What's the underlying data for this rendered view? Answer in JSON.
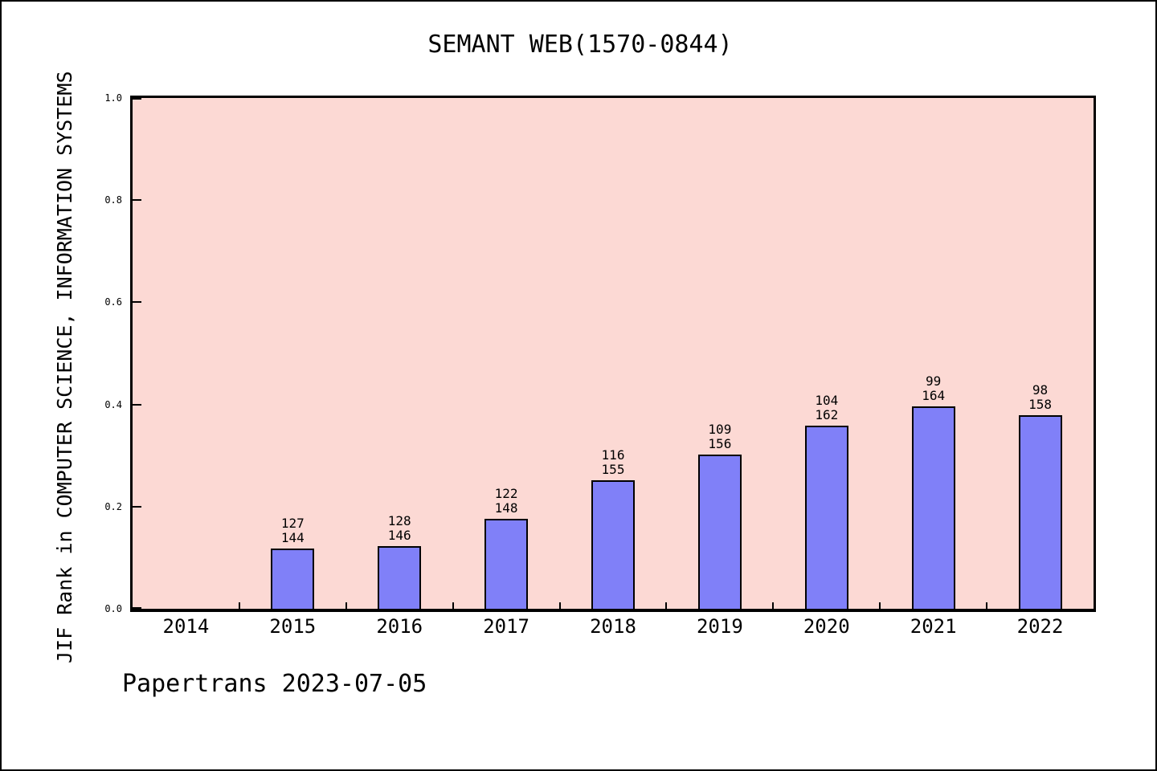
{
  "chart": {
    "title": "SEMANT WEB(1570-0844)",
    "ylabel": "JIF Rank in COMPUTER SCIENCE, INFORMATION SYSTEMS",
    "footer": "Papertrans 2023-07-05"
  },
  "colors": {
    "plot_background": "#fcd9d4",
    "bar_fill": "#8080f8",
    "bar_border": "#000000",
    "axis": "#000000",
    "page_background": "#ffffff",
    "text": "#000000"
  },
  "chart_data": {
    "type": "bar",
    "title": "SEMANT WEB(1570-0844)",
    "xlabel": "",
    "ylabel": "JIF Rank in COMPUTER SCIENCE, INFORMATION SYSTEMS",
    "ylim": [
      0.0,
      1.0
    ],
    "yticks": [
      "0.0",
      "0.2",
      "0.4",
      "0.6",
      "0.8",
      "1.0"
    ],
    "grid": false,
    "legend": false,
    "categories": [
      "2014",
      "2015",
      "2016",
      "2017",
      "2018",
      "2019",
      "2020",
      "2021",
      "2022"
    ],
    "bars": [
      {
        "year": "2014",
        "rank": null,
        "total": null,
        "value": null
      },
      {
        "year": "2015",
        "rank": 127,
        "total": 144,
        "value": 0.1181
      },
      {
        "year": "2016",
        "rank": 128,
        "total": 146,
        "value": 0.1233
      },
      {
        "year": "2017",
        "rank": 122,
        "total": 148,
        "value": 0.1757
      },
      {
        "year": "2018",
        "rank": 116,
        "total": 155,
        "value": 0.2516
      },
      {
        "year": "2019",
        "rank": 109,
        "total": 156,
        "value": 0.3013
      },
      {
        "year": "2020",
        "rank": 104,
        "total": 162,
        "value": 0.358
      },
      {
        "year": "2021",
        "rank": 99,
        "total": 164,
        "value": 0.3963
      },
      {
        "year": "2022",
        "rank": 98,
        "total": 158,
        "value": 0.3797
      }
    ]
  }
}
